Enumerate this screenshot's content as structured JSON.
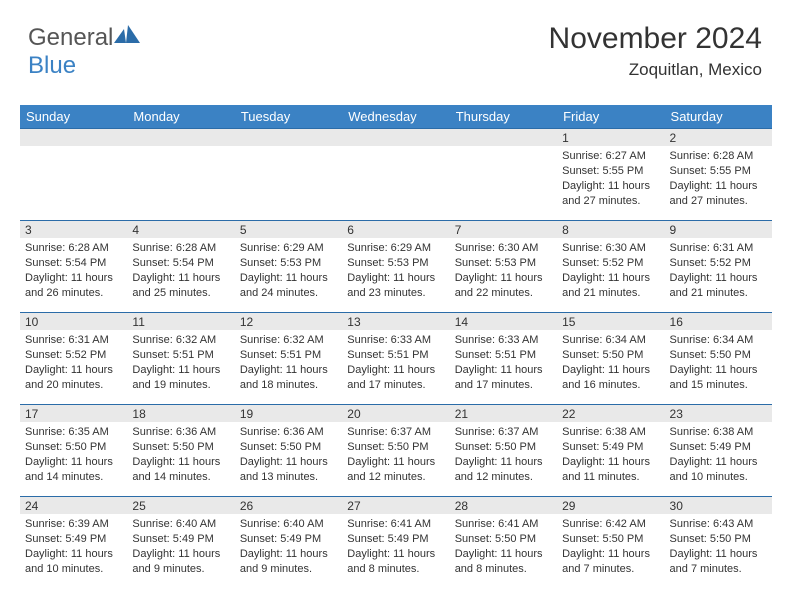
{
  "logo": {
    "textGray": "General",
    "textBlue": "Blue"
  },
  "header": {
    "month": "November 2024",
    "location": "Zoquitlan, Mexico"
  },
  "colors": {
    "headerBg": "#3b82c4",
    "dayNumBg": "#e9e9e9",
    "borderTop": "#2b6ca8",
    "text": "#333333"
  },
  "weekdays": [
    "Sunday",
    "Monday",
    "Tuesday",
    "Wednesday",
    "Thursday",
    "Friday",
    "Saturday"
  ],
  "weeks": [
    [
      null,
      null,
      null,
      null,
      null,
      {
        "n": "1",
        "sr": "Sunrise: 6:27 AM",
        "ss": "Sunset: 5:55 PM",
        "dl": "Daylight: 11 hours and 27 minutes."
      },
      {
        "n": "2",
        "sr": "Sunrise: 6:28 AM",
        "ss": "Sunset: 5:55 PM",
        "dl": "Daylight: 11 hours and 27 minutes."
      }
    ],
    [
      {
        "n": "3",
        "sr": "Sunrise: 6:28 AM",
        "ss": "Sunset: 5:54 PM",
        "dl": "Daylight: 11 hours and 26 minutes."
      },
      {
        "n": "4",
        "sr": "Sunrise: 6:28 AM",
        "ss": "Sunset: 5:54 PM",
        "dl": "Daylight: 11 hours and 25 minutes."
      },
      {
        "n": "5",
        "sr": "Sunrise: 6:29 AM",
        "ss": "Sunset: 5:53 PM",
        "dl": "Daylight: 11 hours and 24 minutes."
      },
      {
        "n": "6",
        "sr": "Sunrise: 6:29 AM",
        "ss": "Sunset: 5:53 PM",
        "dl": "Daylight: 11 hours and 23 minutes."
      },
      {
        "n": "7",
        "sr": "Sunrise: 6:30 AM",
        "ss": "Sunset: 5:53 PM",
        "dl": "Daylight: 11 hours and 22 minutes."
      },
      {
        "n": "8",
        "sr": "Sunrise: 6:30 AM",
        "ss": "Sunset: 5:52 PM",
        "dl": "Daylight: 11 hours and 21 minutes."
      },
      {
        "n": "9",
        "sr": "Sunrise: 6:31 AM",
        "ss": "Sunset: 5:52 PM",
        "dl": "Daylight: 11 hours and 21 minutes."
      }
    ],
    [
      {
        "n": "10",
        "sr": "Sunrise: 6:31 AM",
        "ss": "Sunset: 5:52 PM",
        "dl": "Daylight: 11 hours and 20 minutes."
      },
      {
        "n": "11",
        "sr": "Sunrise: 6:32 AM",
        "ss": "Sunset: 5:51 PM",
        "dl": "Daylight: 11 hours and 19 minutes."
      },
      {
        "n": "12",
        "sr": "Sunrise: 6:32 AM",
        "ss": "Sunset: 5:51 PM",
        "dl": "Daylight: 11 hours and 18 minutes."
      },
      {
        "n": "13",
        "sr": "Sunrise: 6:33 AM",
        "ss": "Sunset: 5:51 PM",
        "dl": "Daylight: 11 hours and 17 minutes."
      },
      {
        "n": "14",
        "sr": "Sunrise: 6:33 AM",
        "ss": "Sunset: 5:51 PM",
        "dl": "Daylight: 11 hours and 17 minutes."
      },
      {
        "n": "15",
        "sr": "Sunrise: 6:34 AM",
        "ss": "Sunset: 5:50 PM",
        "dl": "Daylight: 11 hours and 16 minutes."
      },
      {
        "n": "16",
        "sr": "Sunrise: 6:34 AM",
        "ss": "Sunset: 5:50 PM",
        "dl": "Daylight: 11 hours and 15 minutes."
      }
    ],
    [
      {
        "n": "17",
        "sr": "Sunrise: 6:35 AM",
        "ss": "Sunset: 5:50 PM",
        "dl": "Daylight: 11 hours and 14 minutes."
      },
      {
        "n": "18",
        "sr": "Sunrise: 6:36 AM",
        "ss": "Sunset: 5:50 PM",
        "dl": "Daylight: 11 hours and 14 minutes."
      },
      {
        "n": "19",
        "sr": "Sunrise: 6:36 AM",
        "ss": "Sunset: 5:50 PM",
        "dl": "Daylight: 11 hours and 13 minutes."
      },
      {
        "n": "20",
        "sr": "Sunrise: 6:37 AM",
        "ss": "Sunset: 5:50 PM",
        "dl": "Daylight: 11 hours and 12 minutes."
      },
      {
        "n": "21",
        "sr": "Sunrise: 6:37 AM",
        "ss": "Sunset: 5:50 PM",
        "dl": "Daylight: 11 hours and 12 minutes."
      },
      {
        "n": "22",
        "sr": "Sunrise: 6:38 AM",
        "ss": "Sunset: 5:49 PM",
        "dl": "Daylight: 11 hours and 11 minutes."
      },
      {
        "n": "23",
        "sr": "Sunrise: 6:38 AM",
        "ss": "Sunset: 5:49 PM",
        "dl": "Daylight: 11 hours and 10 minutes."
      }
    ],
    [
      {
        "n": "24",
        "sr": "Sunrise: 6:39 AM",
        "ss": "Sunset: 5:49 PM",
        "dl": "Daylight: 11 hours and 10 minutes."
      },
      {
        "n": "25",
        "sr": "Sunrise: 6:40 AM",
        "ss": "Sunset: 5:49 PM",
        "dl": "Daylight: 11 hours and 9 minutes."
      },
      {
        "n": "26",
        "sr": "Sunrise: 6:40 AM",
        "ss": "Sunset: 5:49 PM",
        "dl": "Daylight: 11 hours and 9 minutes."
      },
      {
        "n": "27",
        "sr": "Sunrise: 6:41 AM",
        "ss": "Sunset: 5:49 PM",
        "dl": "Daylight: 11 hours and 8 minutes."
      },
      {
        "n": "28",
        "sr": "Sunrise: 6:41 AM",
        "ss": "Sunset: 5:50 PM",
        "dl": "Daylight: 11 hours and 8 minutes."
      },
      {
        "n": "29",
        "sr": "Sunrise: 6:42 AM",
        "ss": "Sunset: 5:50 PM",
        "dl": "Daylight: 11 hours and 7 minutes."
      },
      {
        "n": "30",
        "sr": "Sunrise: 6:43 AM",
        "ss": "Sunset: 5:50 PM",
        "dl": "Daylight: 11 hours and 7 minutes."
      }
    ]
  ]
}
